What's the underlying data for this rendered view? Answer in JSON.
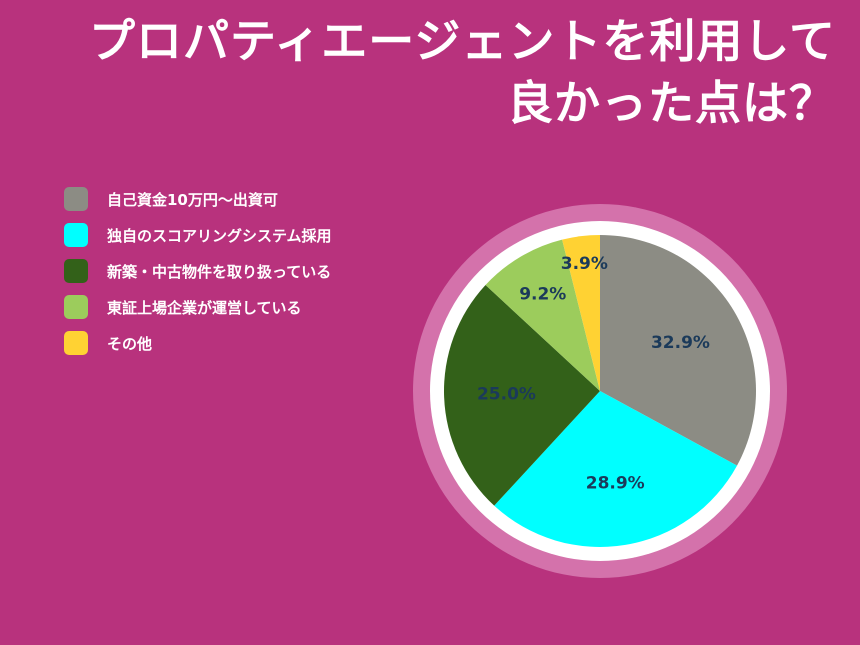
{
  "title": {
    "line1": "プロパティエージェントを利用して",
    "line2": "良かった点は？"
  },
  "colors": {
    "background": "#b8327d",
    "ring_outer": "#d472ab",
    "ring_inner": "#ffffff",
    "label_text": "#1b3a5a"
  },
  "chart_data": {
    "type": "pie",
    "categories": [
      "自己資金10万円〜出資可",
      "独自のスコアリングシステム採用",
      "新築・中古物件を取り扱っている",
      "東証上場企業が運営している",
      "その他"
    ],
    "values": [
      32.9,
      28.9,
      25.0,
      9.2,
      3.9
    ],
    "value_labels": [
      "32.9%",
      "28.9%",
      "25.0%",
      "9.2%",
      "3.9%"
    ],
    "colors": [
      "#8c8c84",
      "#00ffff",
      "#336119",
      "#9ccc5c",
      "#ffd233"
    ],
    "legend_position": "top-left"
  }
}
